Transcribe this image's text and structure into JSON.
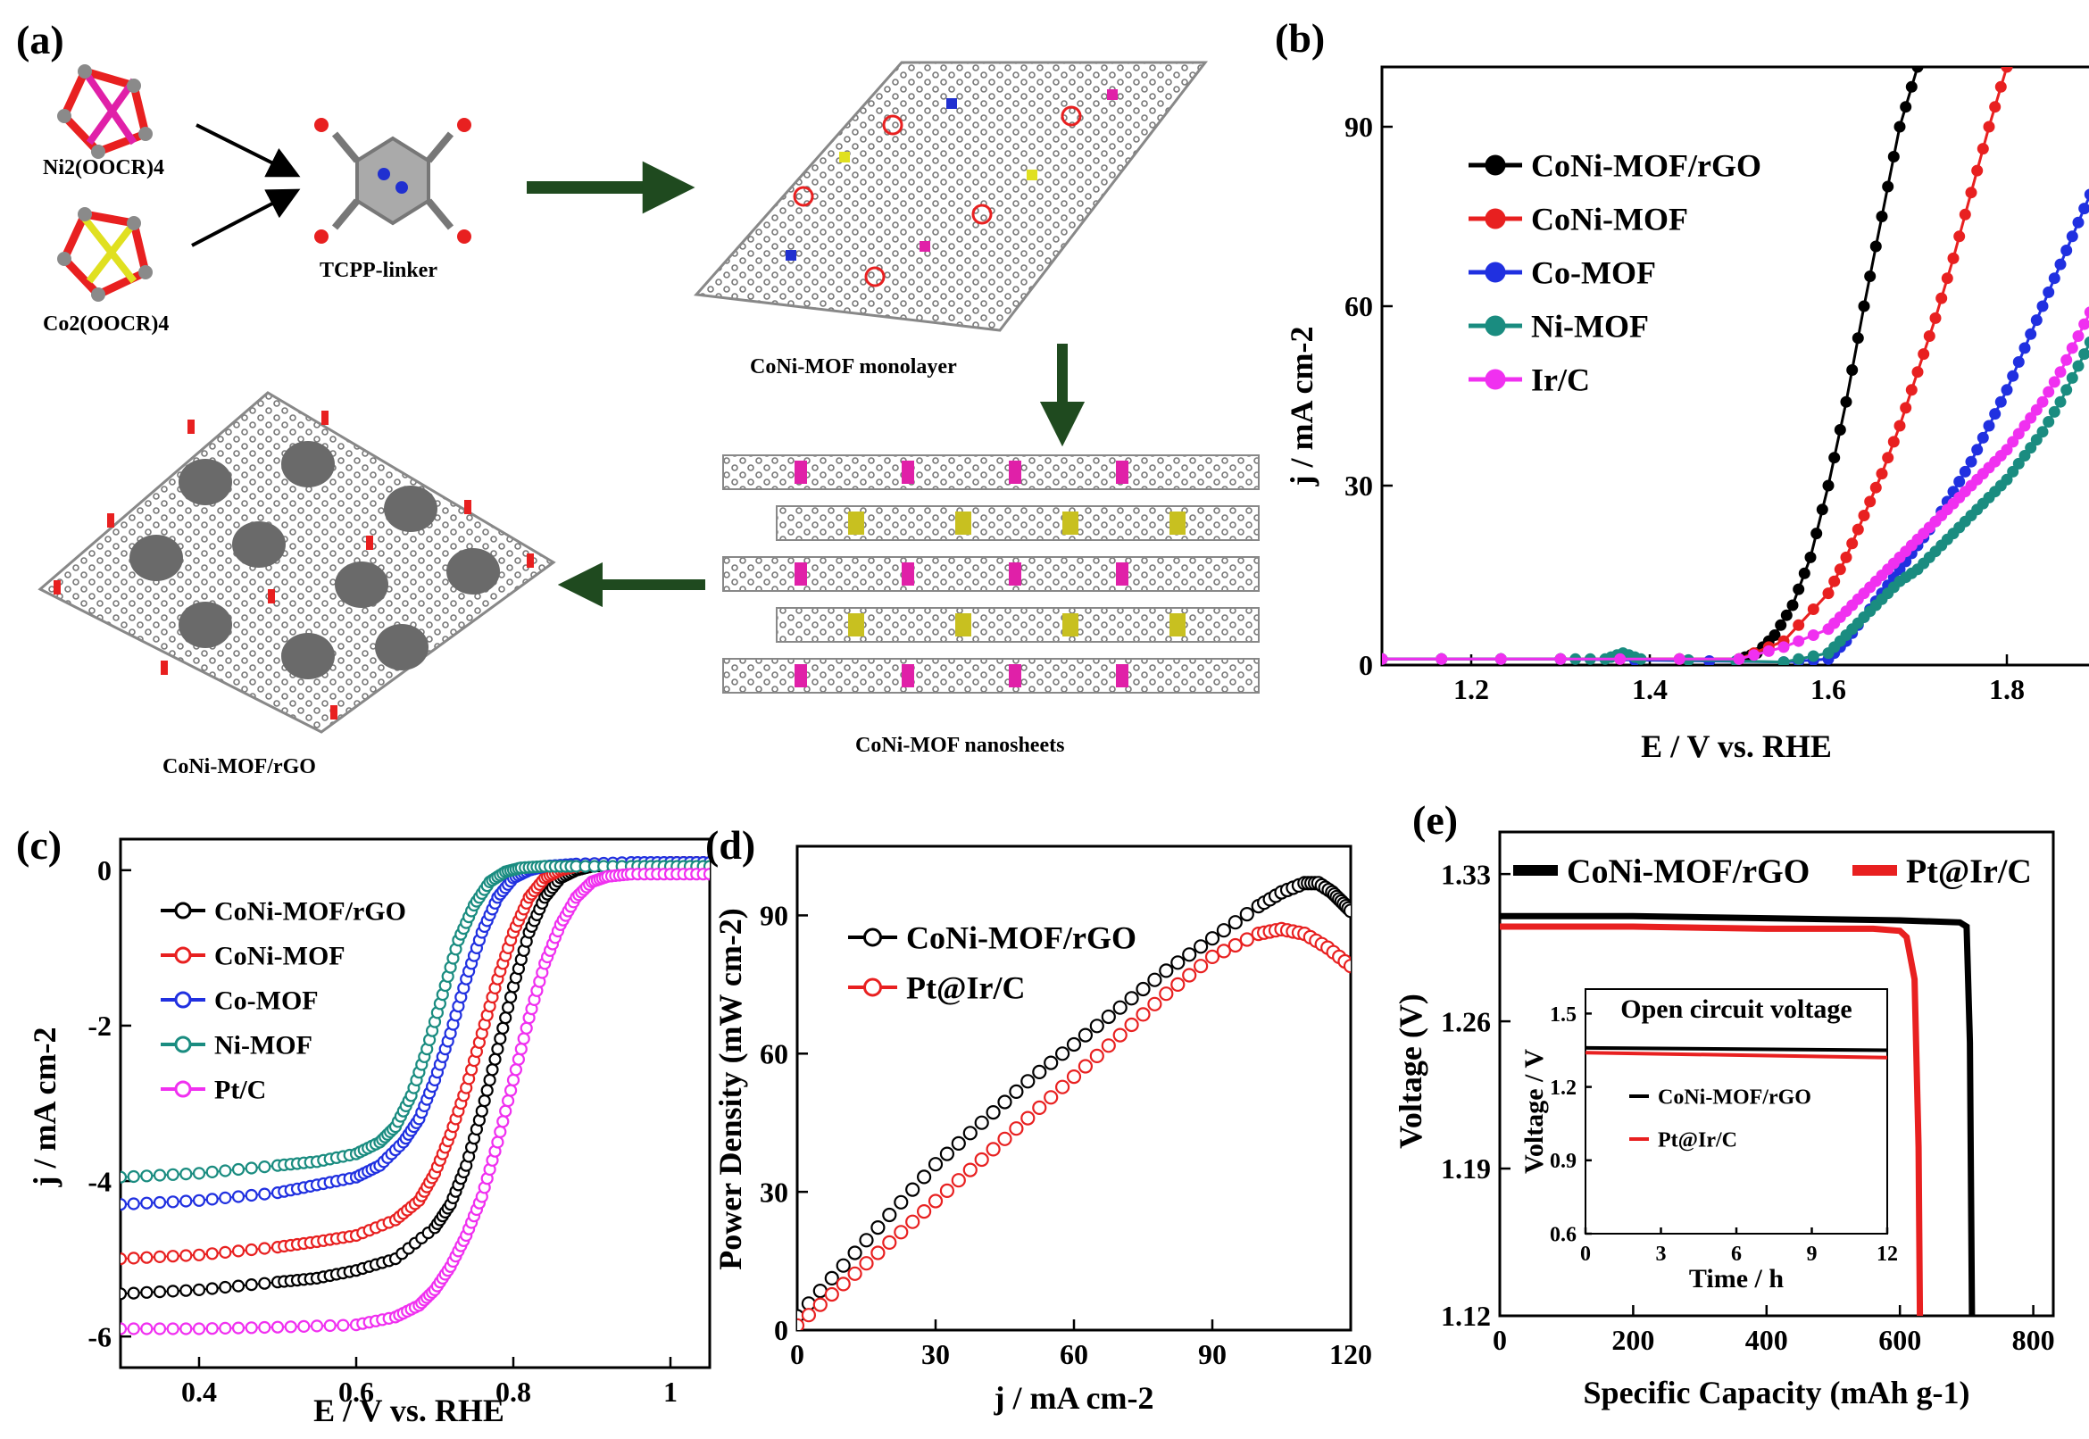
{
  "panel_labels": {
    "a": "(a)",
    "b": "(b)",
    "c": "(c)",
    "d": "(d)",
    "e": "(e)"
  },
  "scheme": {
    "ni_node": "Ni2(OOCR)4",
    "co_node": "Co2(OOCR)4",
    "linker": "TCPP-linker",
    "monolayer": "CoNi-MOF monolayer",
    "nanosheets": "CoNi-MOF nanosheets",
    "composite": "CoNi-MOF/rGO",
    "colors": {
      "ni": "#e020a8",
      "co": "#e0e020",
      "o": "#e82020",
      "c": "#8a8a8a",
      "n": "#2030d0",
      "arrow": "#1f4a1f"
    }
  },
  "chart_data": [
    {
      "id": "b",
      "type": "line",
      "xlabel": "E / V vs. RHE",
      "ylabel": "j / mA cm-2",
      "xlim": [
        1.1,
        1.9
      ],
      "ylim": [
        0,
        100
      ],
      "xticks": [
        1.2,
        1.4,
        1.6,
        1.8
      ],
      "yticks": [
        0,
        30,
        60,
        90
      ],
      "legend_position": "top-left",
      "series": [
        {
          "name": "CoNi-MOF/rGO",
          "color": "#000000",
          "x": [
            1.1,
            1.3,
            1.5,
            1.52,
            1.54,
            1.56,
            1.58,
            1.6,
            1.62,
            1.64,
            1.66,
            1.68,
            1.7
          ],
          "y": [
            1,
            1,
            1,
            2,
            5,
            10,
            18,
            30,
            44,
            60,
            75,
            90,
            100
          ]
        },
        {
          "name": "CoNi-MOF",
          "color": "#e82020",
          "x": [
            1.1,
            1.3,
            1.5,
            1.55,
            1.6,
            1.62,
            1.64,
            1.66,
            1.68,
            1.7,
            1.72,
            1.74,
            1.76,
            1.78,
            1.8
          ],
          "y": [
            1,
            1,
            1,
            4,
            12,
            18,
            25,
            32,
            40,
            49,
            58,
            68,
            79,
            90,
            100
          ]
        },
        {
          "name": "Co-MOF",
          "color": "#2030e0",
          "x": [
            1.1,
            1.3,
            1.55,
            1.6,
            1.62,
            1.64,
            1.66,
            1.68,
            1.7,
            1.72,
            1.74,
            1.76,
            1.78,
            1.8,
            1.82,
            1.84,
            1.86,
            1.88,
            1.9
          ],
          "y": [
            1,
            1,
            0.5,
            1,
            4,
            8,
            12,
            16,
            20,
            24,
            29,
            34,
            40,
            46,
            53,
            60,
            67,
            74,
            81
          ]
        },
        {
          "name": "Ni-MOF",
          "color": "#1a8c80",
          "x": [
            1.1,
            1.3,
            1.35,
            1.37,
            1.39,
            1.55,
            1.6,
            1.62,
            1.64,
            1.66,
            1.68,
            1.7,
            1.72,
            1.74,
            1.76,
            1.78,
            1.8,
            1.82,
            1.84,
            1.86,
            1.88,
            1.9
          ],
          "y": [
            1,
            1,
            1,
            2,
            1,
            0.5,
            2,
            5,
            8,
            11,
            14,
            16,
            19,
            22,
            25,
            28,
            31,
            35,
            39,
            44,
            50,
            56
          ]
        },
        {
          "name": "Ir/C",
          "color": "#f030f0",
          "x": [
            1.1,
            1.3,
            1.5,
            1.55,
            1.6,
            1.62,
            1.64,
            1.66,
            1.68,
            1.7,
            1.72,
            1.74,
            1.76,
            1.78,
            1.8,
            1.82,
            1.84,
            1.86,
            1.88,
            1.9
          ],
          "y": [
            1,
            1,
            1,
            3,
            6,
            9,
            12,
            15,
            18,
            21,
            24,
            27,
            30,
            33,
            36,
            40,
            44,
            49,
            55,
            61
          ]
        }
      ]
    },
    {
      "id": "c",
      "type": "line",
      "xlabel": "E / V vs. RHE",
      "ylabel": "j / mA cm-2",
      "xlim": [
        0.3,
        1.05
      ],
      "ylim": [
        -6.4,
        0.4
      ],
      "xticks": [
        0.4,
        0.6,
        0.8,
        1.0
      ],
      "yticks": [
        0,
        -2,
        -4,
        -6
      ],
      "legend_position": "top-left",
      "series": [
        {
          "name": "CoNi-MOF/rGO",
          "color": "#000000",
          "x": [
            0.3,
            0.4,
            0.5,
            0.55,
            0.6,
            0.65,
            0.7,
            0.72,
            0.74,
            0.76,
            0.78,
            0.8,
            0.82,
            0.84,
            0.86,
            0.88,
            0.9,
            0.95,
            1.0,
            1.05
          ],
          "y": [
            -5.45,
            -5.4,
            -5.3,
            -5.25,
            -5.15,
            -5.0,
            -4.6,
            -4.3,
            -3.8,
            -3.1,
            -2.3,
            -1.5,
            -0.8,
            -0.35,
            -0.1,
            0.0,
            0.05,
            0.08,
            0.1,
            0.1
          ]
        },
        {
          "name": "CoNi-MOF",
          "color": "#e82020",
          "x": [
            0.3,
            0.4,
            0.5,
            0.55,
            0.6,
            0.65,
            0.68,
            0.7,
            0.72,
            0.74,
            0.76,
            0.78,
            0.8,
            0.82,
            0.84,
            0.86,
            0.88,
            0.9,
            0.95,
            1.0,
            1.05
          ],
          "y": [
            -5.0,
            -4.95,
            -4.85,
            -4.78,
            -4.7,
            -4.5,
            -4.25,
            -3.9,
            -3.4,
            -2.8,
            -2.1,
            -1.4,
            -0.8,
            -0.35,
            -0.1,
            0.0,
            0.05,
            0.07,
            0.08,
            0.1,
            0.1
          ]
        },
        {
          "name": "Co-MOF",
          "color": "#2030e0",
          "x": [
            0.3,
            0.4,
            0.5,
            0.55,
            0.6,
            0.63,
            0.66,
            0.68,
            0.7,
            0.72,
            0.74,
            0.76,
            0.78,
            0.8,
            0.82,
            0.84,
            0.88,
            0.95,
            1.0,
            1.05
          ],
          "y": [
            -4.3,
            -4.25,
            -4.15,
            -4.05,
            -3.95,
            -3.8,
            -3.5,
            -3.2,
            -2.7,
            -2.1,
            -1.4,
            -0.8,
            -0.35,
            -0.1,
            0.0,
            0.05,
            0.08,
            0.1,
            0.1,
            0.1
          ]
        },
        {
          "name": "Ni-MOF",
          "color": "#1a8c80",
          "x": [
            0.3,
            0.4,
            0.5,
            0.55,
            0.6,
            0.63,
            0.65,
            0.67,
            0.69,
            0.71,
            0.73,
            0.75,
            0.77,
            0.79,
            0.81,
            0.84,
            0.88,
            0.95,
            1.0,
            1.05
          ],
          "y": [
            -3.95,
            -3.9,
            -3.8,
            -3.75,
            -3.65,
            -3.5,
            -3.3,
            -2.9,
            -2.3,
            -1.6,
            -0.9,
            -0.45,
            -0.15,
            -0.02,
            0.03,
            0.05,
            0.05,
            0.05,
            0.05,
            0.05
          ]
        },
        {
          "name": "Pt/C",
          "color": "#f030f0",
          "x": [
            0.3,
            0.4,
            0.5,
            0.6,
            0.65,
            0.68,
            0.7,
            0.72,
            0.74,
            0.76,
            0.78,
            0.8,
            0.82,
            0.84,
            0.86,
            0.88,
            0.9,
            0.92,
            0.95,
            1.0,
            1.05
          ],
          "y": [
            -5.9,
            -5.9,
            -5.88,
            -5.85,
            -5.75,
            -5.6,
            -5.4,
            -5.1,
            -4.7,
            -4.2,
            -3.5,
            -2.7,
            -1.9,
            -1.2,
            -0.7,
            -0.35,
            -0.15,
            -0.08,
            -0.05,
            -0.05,
            -0.05
          ]
        }
      ]
    },
    {
      "id": "d",
      "type": "scatter",
      "xlabel": "j / mA cm-2",
      "ylabel": "Power Density (mW cm-2)",
      "xlim": [
        0,
        120
      ],
      "ylim": [
        0,
        105
      ],
      "xticks": [
        0,
        30,
        60,
        90,
        120
      ],
      "yticks": [
        0,
        30,
        60,
        90
      ],
      "legend_position": "top-left",
      "series": [
        {
          "name": "CoNi-MOF/rGO",
          "color": "#000000",
          "x": [
            0,
            10,
            20,
            30,
            40,
            50,
            60,
            70,
            80,
            90,
            100,
            105,
            110,
            113,
            116,
            118,
            120
          ],
          "y": [
            3,
            14,
            25,
            36,
            45,
            54,
            62,
            70,
            78,
            85,
            92,
            95,
            97,
            97,
            95,
            93,
            91
          ]
        },
        {
          "name": "Pt@Ir/C",
          "color": "#e82020",
          "x": [
            0,
            10,
            20,
            30,
            40,
            50,
            60,
            70,
            80,
            90,
            100,
            105,
            110,
            115,
            120
          ],
          "y": [
            1,
            10,
            19,
            28,
            37,
            46,
            55,
            64,
            73,
            81,
            86,
            87,
            86,
            83,
            79
          ]
        }
      ]
    },
    {
      "id": "e",
      "type": "line",
      "xlabel": "Specific Capacity (mAh g-1)",
      "ylabel": "Voltage (V)",
      "xlim": [
        0,
        830
      ],
      "ylim": [
        1.12,
        1.35
      ],
      "xticks": [
        0,
        200,
        400,
        600,
        800
      ],
      "yticks": [
        1.12,
        1.19,
        1.26,
        1.33
      ],
      "legend_position": "top",
      "series": [
        {
          "name": "CoNi-MOF/rGO",
          "color": "#000000",
          "x": [
            0,
            200,
            400,
            600,
            690,
            700,
            705,
            708
          ],
          "y": [
            1.31,
            1.31,
            1.309,
            1.308,
            1.307,
            1.305,
            1.25,
            1.12
          ]
        },
        {
          "name": "Pt@Ir/C",
          "color": "#e82020",
          "x": [
            0,
            200,
            400,
            560,
            600,
            610,
            622,
            628,
            630
          ],
          "y": [
            1.305,
            1.305,
            1.304,
            1.304,
            1.303,
            1.3,
            1.28,
            1.2,
            1.12
          ]
        }
      ],
      "inset": {
        "title": "Open circuit voltage",
        "xlabel": "Time / h",
        "ylabel": "Voltage / V",
        "xlim": [
          0,
          12
        ],
        "ylim": [
          0.6,
          1.6
        ],
        "xticks": [
          0,
          3,
          6,
          9,
          12
        ],
        "yticks": [
          0.6,
          0.9,
          1.2,
          1.5
        ],
        "series": [
          {
            "name": "CoNi-MOF/rGO",
            "color": "#000000",
            "x": [
              0,
              12
            ],
            "y": [
              1.36,
              1.35
            ]
          },
          {
            "name": "Pt@Ir/C",
            "color": "#e82020",
            "x": [
              0,
              12
            ],
            "y": [
              1.34,
              1.32
            ]
          }
        ]
      }
    }
  ]
}
